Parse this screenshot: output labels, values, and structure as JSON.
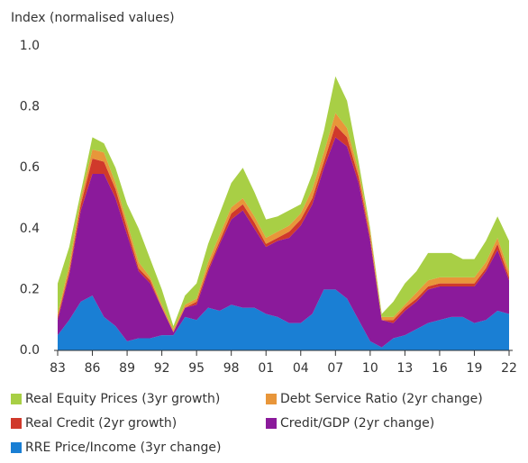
{
  "chart_data": {
    "type": "stacked-area",
    "y_label": "Index (normalised values)",
    "x": [
      1983,
      1984,
      1985,
      1986,
      1987,
      1988,
      1989,
      1990,
      1991,
      1992,
      1993,
      1994,
      1995,
      1996,
      1997,
      1998,
      1999,
      2000,
      2001,
      2002,
      2003,
      2004,
      2005,
      2006,
      2007,
      2008,
      2009,
      2010,
      2011,
      2012,
      2013,
      2014,
      2015,
      2016,
      2017,
      2018,
      2019,
      2020,
      2021,
      2022
    ],
    "xlim": [
      1983,
      2022
    ],
    "xticks": [
      {
        "value": 1983,
        "label": "83"
      },
      {
        "value": 1986,
        "label": "86"
      },
      {
        "value": 1989,
        "label": "89"
      },
      {
        "value": 1992,
        "label": "92"
      },
      {
        "value": 1995,
        "label": "95"
      },
      {
        "value": 1998,
        "label": "98"
      },
      {
        "value": 2001,
        "label": "01"
      },
      {
        "value": 2004,
        "label": "04"
      },
      {
        "value": 2007,
        "label": "07"
      },
      {
        "value": 2010,
        "label": "10"
      },
      {
        "value": 2013,
        "label": "13"
      },
      {
        "value": 2016,
        "label": "16"
      },
      {
        "value": 2019,
        "label": "19"
      },
      {
        "value": 2022,
        "label": "22"
      }
    ],
    "ylim": [
      0,
      1
    ],
    "yticks": [
      {
        "value": 0,
        "label": "0.0"
      },
      0.2,
      0.4,
      0.6,
      0.8,
      {
        "value": 1,
        "label": "1.0"
      }
    ],
    "series": [
      {
        "name": "Real Equity Prices (3yr growth)",
        "color": "#a8cf45",
        "values": [
          0.1,
          0.06,
          0.02,
          0.04,
          0.03,
          0.05,
          0.06,
          0.11,
          0.06,
          0.05,
          0.01,
          0.03,
          0.05,
          0.06,
          0.07,
          0.08,
          0.1,
          0.08,
          0.06,
          0.05,
          0.05,
          0.03,
          0.05,
          0.07,
          0.12,
          0.09,
          0.03,
          0.01,
          0.01,
          0.05,
          0.07,
          0.07,
          0.09,
          0.08,
          0.08,
          0.06,
          0.06,
          0.07,
          0.07,
          0.1
        ]
      },
      {
        "name": "Debt Service Ratio (2yr change)",
        "color": "#e8963a",
        "values": [
          0.01,
          0.02,
          0.02,
          0.03,
          0.03,
          0.02,
          0.02,
          0.02,
          0.01,
          0.01,
          0.01,
          0.01,
          0.01,
          0.02,
          0.02,
          0.02,
          0.02,
          0.02,
          0.02,
          0.02,
          0.02,
          0.02,
          0.03,
          0.03,
          0.04,
          0.03,
          0.02,
          0.02,
          0.01,
          0.01,
          0.01,
          0.02,
          0.02,
          0.02,
          0.02,
          0.02,
          0.02,
          0.02,
          0.02,
          0.02
        ]
      },
      {
        "name": "Real Credit (2yr growth)",
        "color": "#d0392b",
        "values": [
          0.01,
          0.01,
          0.02,
          0.05,
          0.04,
          0.03,
          0.02,
          0.01,
          0.01,
          0,
          0,
          0,
          0.01,
          0.01,
          0.01,
          0.02,
          0.02,
          0.02,
          0.01,
          0.01,
          0.02,
          0.02,
          0.02,
          0.02,
          0.04,
          0.03,
          0.02,
          0.01,
          0,
          0.01,
          0.01,
          0.01,
          0.01,
          0.01,
          0.01,
          0.01,
          0.01,
          0.01,
          0.02,
          0.01
        ]
      },
      {
        "name": "Credit/GDP (2yr change)",
        "color": "#8b1a9b",
        "values": [
          0.05,
          0.15,
          0.3,
          0.4,
          0.47,
          0.42,
          0.35,
          0.22,
          0.18,
          0.09,
          0.01,
          0.03,
          0.05,
          0.12,
          0.22,
          0.28,
          0.32,
          0.26,
          0.22,
          0.25,
          0.28,
          0.32,
          0.36,
          0.4,
          0.5,
          0.5,
          0.45,
          0.33,
          0.09,
          0.05,
          0.08,
          0.09,
          0.11,
          0.11,
          0.1,
          0.1,
          0.12,
          0.16,
          0.2,
          0.11
        ]
      },
      {
        "name": "RRE Price/Income (3yr change)",
        "color": "#1a7fd4",
        "values": [
          0.05,
          0.1,
          0.16,
          0.18,
          0.11,
          0.08,
          0.03,
          0.04,
          0.04,
          0.05,
          0.05,
          0.11,
          0.1,
          0.14,
          0.13,
          0.15,
          0.14,
          0.14,
          0.12,
          0.11,
          0.09,
          0.09,
          0.12,
          0.2,
          0.2,
          0.17,
          0.1,
          0.03,
          0.01,
          0.04,
          0.05,
          0.07,
          0.09,
          0.1,
          0.11,
          0.11,
          0.09,
          0.1,
          0.13,
          0.12
        ]
      }
    ]
  }
}
